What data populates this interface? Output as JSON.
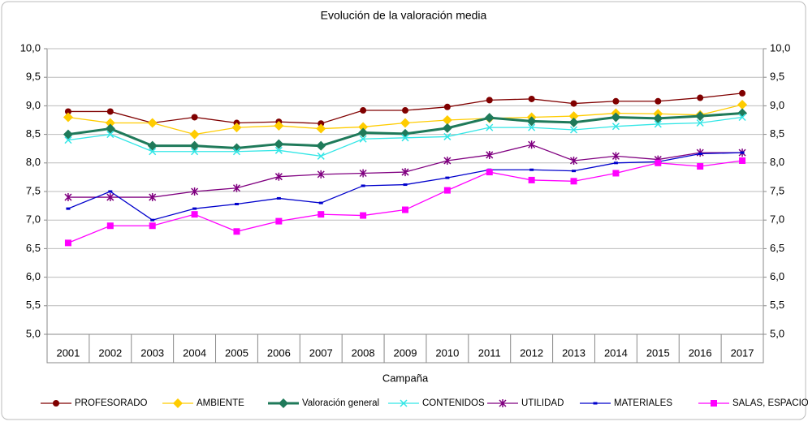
{
  "chart_data": {
    "type": "line",
    "title": "Evolución de la valoración media",
    "x_label": "Campaña",
    "categories": [
      "2001",
      "2002",
      "2003",
      "2004",
      "2005",
      "2006",
      "2007",
      "2008",
      "2009",
      "2010",
      "2011",
      "2012",
      "2013",
      "2014",
      "2015",
      "2016",
      "2017"
    ],
    "ylim": [
      5,
      10
    ],
    "yticks": [
      {
        "value": 5,
        "label": "5,0"
      },
      {
        "value": 5.5,
        "label": "5,5"
      },
      {
        "value": 6,
        "label": "6,0"
      },
      {
        "value": 6.5,
        "label": "6,5"
      },
      {
        "value": 7,
        "label": "7,0"
      },
      {
        "value": 7.5,
        "label": "7,5"
      },
      {
        "value": 8,
        "label": "8,0"
      },
      {
        "value": 8.5,
        "label": "8,5"
      },
      {
        "value": 9,
        "label": "9,0"
      },
      {
        "value": 9.5,
        "label": "9,5"
      },
      {
        "value": 10,
        "label": "10,0"
      }
    ],
    "grid": true,
    "legend": "bottom",
    "series": [
      {
        "name": "PROFESORADO",
        "color": "#800000",
        "marker": "circle",
        "values": [
          8.9,
          8.9,
          8.7,
          8.8,
          8.7,
          8.72,
          8.69,
          8.92,
          8.92,
          8.98,
          9.1,
          9.12,
          9.04,
          9.08,
          9.08,
          9.14,
          9.22
        ]
      },
      {
        "name": "AMBIENTE",
        "color": "#ffcc00",
        "marker": "diamond",
        "values": [
          8.8,
          8.7,
          8.7,
          8.5,
          8.62,
          8.65,
          8.6,
          8.63,
          8.7,
          8.75,
          8.78,
          8.8,
          8.82,
          8.87,
          8.86,
          8.84,
          9.02
        ]
      },
      {
        "name": "Valoración general",
        "color": "#1f7a5a",
        "marker": "diamond",
        "width": 3,
        "values": [
          8.5,
          8.6,
          8.3,
          8.3,
          8.26,
          8.33,
          8.3,
          8.53,
          8.51,
          8.61,
          8.79,
          8.73,
          8.71,
          8.8,
          8.78,
          8.82,
          8.87
        ]
      },
      {
        "name": "CONTENIDOS",
        "color": "#33e6e6",
        "marker": "x",
        "values": [
          8.4,
          8.5,
          8.2,
          8.2,
          8.2,
          8.22,
          8.12,
          8.42,
          8.44,
          8.46,
          8.62,
          8.62,
          8.58,
          8.64,
          8.68,
          8.7,
          8.8
        ]
      },
      {
        "name": "UTILIDAD",
        "color": "#800080",
        "marker": "star",
        "values": [
          7.4,
          7.4,
          7.4,
          7.5,
          7.56,
          7.76,
          7.8,
          7.82,
          7.84,
          8.04,
          8.14,
          8.32,
          8.04,
          8.12,
          8.06,
          8.18,
          8.18
        ]
      },
      {
        "name": "MATERIALES",
        "color": "#0000cc",
        "marker": "dash",
        "values": [
          7.2,
          7.5,
          7.0,
          7.2,
          7.28,
          7.38,
          7.3,
          7.6,
          7.62,
          7.74,
          7.88,
          7.88,
          7.86,
          8.0,
          8.02,
          8.16,
          8.18
        ]
      },
      {
        "name": "SALAS, ESPACIOS",
        "color": "#ff00ff",
        "marker": "square",
        "values": [
          6.6,
          6.9,
          6.9,
          7.1,
          6.8,
          6.98,
          7.1,
          7.08,
          7.18,
          7.52,
          7.84,
          7.7,
          7.68,
          7.82,
          8.0,
          7.94,
          8.04
        ]
      }
    ]
  }
}
